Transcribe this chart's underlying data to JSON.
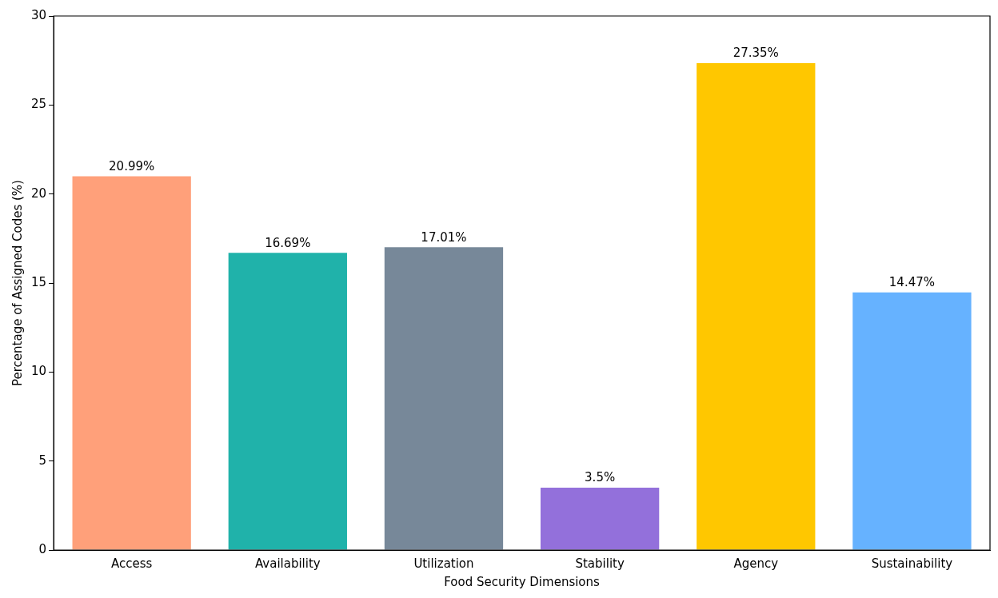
{
  "chart_data": {
    "type": "bar",
    "xlabel": "Food Security Dimensions",
    "ylabel": "Percentage of Assigned Codes (%)",
    "categories": [
      "Access",
      "Availability",
      "Utilization",
      "Stability",
      "Agency",
      "Sustainability"
    ],
    "values": [
      20.99,
      16.69,
      17.01,
      3.5,
      27.35,
      14.47
    ],
    "colors": [
      "#ffa07a",
      "#20b2aa",
      "#778899",
      "#9370db",
      "#ffc700",
      "#66b2ff"
    ],
    "value_labels": [
      "20.99%",
      "16.69%",
      "17.01%",
      "3.5%",
      "27.35%",
      "14.47%"
    ],
    "ylim": [
      0,
      30
    ],
    "yticks": [
      0,
      5,
      10,
      15,
      20,
      25,
      30
    ],
    "grid": false,
    "legend": false
  }
}
